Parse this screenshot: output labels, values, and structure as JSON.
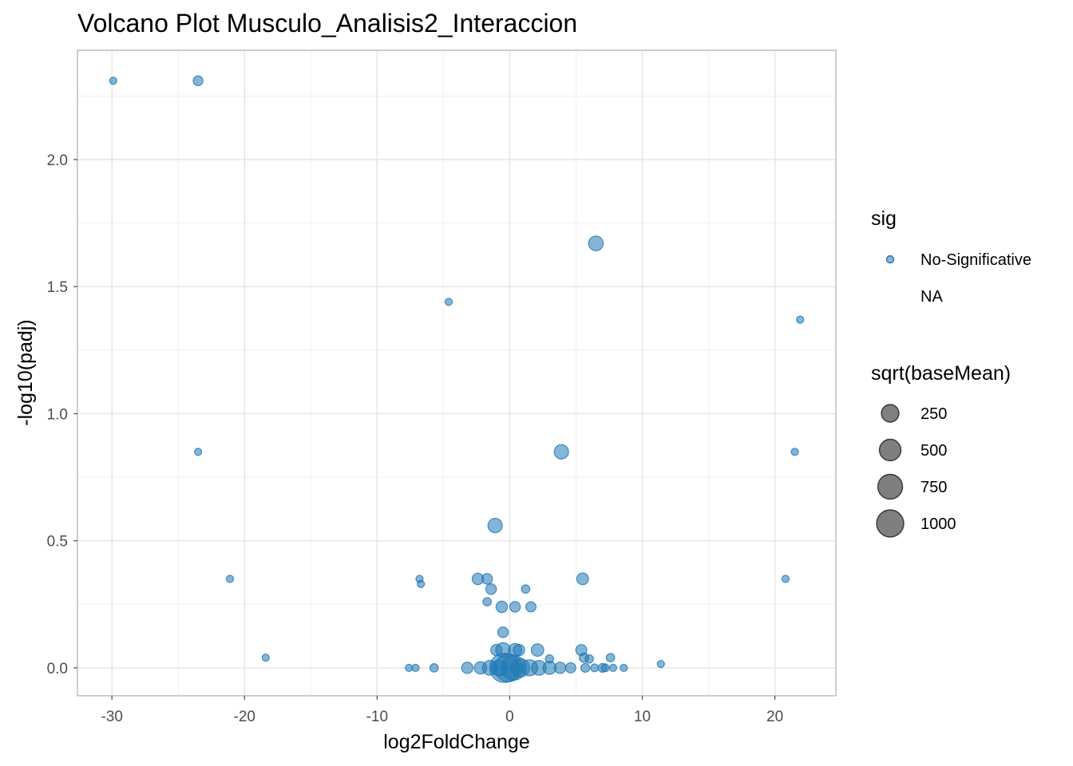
{
  "chart_data": {
    "type": "scatter",
    "title": "Volcano Plot Musculo_Analisis2_Interaccion",
    "xlabel": "log2FoldChange",
    "ylabel": "-log10(padj)",
    "xlim": [
      -32.6,
      24.6
    ],
    "ylim": [
      -0.11,
      2.43
    ],
    "x_ticks": [
      -30,
      -20,
      -10,
      0,
      10,
      20
    ],
    "x_tick_labels": [
      "-30",
      "-20",
      "-10",
      "0",
      "10",
      "20"
    ],
    "y_ticks": [
      0.0,
      0.5,
      1.0,
      1.5,
      2.0
    ],
    "y_tick_labels": [
      "0.0",
      "0.5",
      "1.0",
      "1.5",
      "2.0"
    ],
    "grid": true,
    "point_color": "#1f78b4",
    "point_alpha": 0.55,
    "legend": {
      "placement": "right",
      "color_title": "sig",
      "color_entries": [
        "No-Significative",
        "NA"
      ],
      "size_title": "sqrt(baseMean)",
      "size_entries": [
        {
          "label": "250",
          "value": 250
        },
        {
          "label": "500",
          "value": 500
        },
        {
          "label": "750",
          "value": 750
        },
        {
          "label": "1000",
          "value": 1000
        }
      ]
    },
    "series": [
      {
        "name": "No-Significative",
        "points": [
          {
            "x": -29.9,
            "y": 2.31,
            "size": 60
          },
          {
            "x": -23.5,
            "y": 2.31,
            "size": 110
          },
          {
            "x": -23.5,
            "y": 0.85,
            "size": 60
          },
          {
            "x": -21.1,
            "y": 0.35,
            "size": 60
          },
          {
            "x": -18.4,
            "y": 0.04,
            "size": 60
          },
          {
            "x": 6.5,
            "y": 1.67,
            "size": 250
          },
          {
            "x": -4.6,
            "y": 1.44,
            "size": 60
          },
          {
            "x": 21.9,
            "y": 1.37,
            "size": 60
          },
          {
            "x": 21.5,
            "y": 0.85,
            "size": 60
          },
          {
            "x": 3.9,
            "y": 0.85,
            "size": 240
          },
          {
            "x": -1.1,
            "y": 0.56,
            "size": 240
          },
          {
            "x": 20.8,
            "y": 0.35,
            "size": 60
          },
          {
            "x": -6.8,
            "y": 0.35,
            "size": 60
          },
          {
            "x": -6.7,
            "y": 0.33,
            "size": 60
          },
          {
            "x": -2.4,
            "y": 0.35,
            "size": 150
          },
          {
            "x": -1.7,
            "y": 0.35,
            "size": 130
          },
          {
            "x": 5.5,
            "y": 0.35,
            "size": 160
          },
          {
            "x": -1.4,
            "y": 0.31,
            "size": 130
          },
          {
            "x": 1.2,
            "y": 0.31,
            "size": 80
          },
          {
            "x": -1.7,
            "y": 0.26,
            "size": 80
          },
          {
            "x": -0.6,
            "y": 0.24,
            "size": 150
          },
          {
            "x": 0.4,
            "y": 0.24,
            "size": 130
          },
          {
            "x": 1.6,
            "y": 0.24,
            "size": 120
          },
          {
            "x": -0.5,
            "y": 0.14,
            "size": 130
          },
          {
            "x": -1.0,
            "y": 0.07,
            "size": 150
          },
          {
            "x": -0.5,
            "y": 0.07,
            "size": 250
          },
          {
            "x": 0.4,
            "y": 0.07,
            "size": 200
          },
          {
            "x": 0.7,
            "y": 0.07,
            "size": 150
          },
          {
            "x": 2.1,
            "y": 0.07,
            "size": 180
          },
          {
            "x": 5.4,
            "y": 0.07,
            "size": 140
          },
          {
            "x": 3.0,
            "y": 0.035,
            "size": 80
          },
          {
            "x": 5.6,
            "y": 0.04,
            "size": 100
          },
          {
            "x": 6.0,
            "y": 0.035,
            "size": 80
          },
          {
            "x": 7.6,
            "y": 0.04,
            "size": 80
          },
          {
            "x": 11.4,
            "y": 0.015,
            "size": 60
          },
          {
            "x": -7.6,
            "y": 0.0,
            "size": 60
          },
          {
            "x": -7.1,
            "y": 0.0,
            "size": 60
          },
          {
            "x": -5.7,
            "y": 0.0,
            "size": 80
          },
          {
            "x": -3.2,
            "y": 0.0,
            "size": 150
          },
          {
            "x": -2.2,
            "y": 0.0,
            "size": 180
          },
          {
            "x": -1.5,
            "y": 0.0,
            "size": 250
          },
          {
            "x": -0.8,
            "y": 0.0,
            "size": 300
          },
          {
            "x": -0.4,
            "y": 0.0,
            "size": 1000
          },
          {
            "x": -0.1,
            "y": 0.0,
            "size": 900
          },
          {
            "x": 0.3,
            "y": 0.0,
            "size": 700
          },
          {
            "x": 0.8,
            "y": 0.0,
            "size": 400
          },
          {
            "x": 1.5,
            "y": 0.0,
            "size": 300
          },
          {
            "x": 2.2,
            "y": 0.0,
            "size": 250
          },
          {
            "x": 3.0,
            "y": 0.0,
            "size": 200
          },
          {
            "x": 3.8,
            "y": 0.0,
            "size": 150
          },
          {
            "x": 4.6,
            "y": 0.0,
            "size": 120
          },
          {
            "x": 5.7,
            "y": 0.0,
            "size": 90
          },
          {
            "x": 6.4,
            "y": 0.0,
            "size": 70
          },
          {
            "x": 7.0,
            "y": 0.0,
            "size": 90
          },
          {
            "x": 7.2,
            "y": 0.0,
            "size": 70
          },
          {
            "x": 7.8,
            "y": 0.0,
            "size": 60
          },
          {
            "x": 8.6,
            "y": 0.0,
            "size": 60
          }
        ]
      }
    ]
  }
}
